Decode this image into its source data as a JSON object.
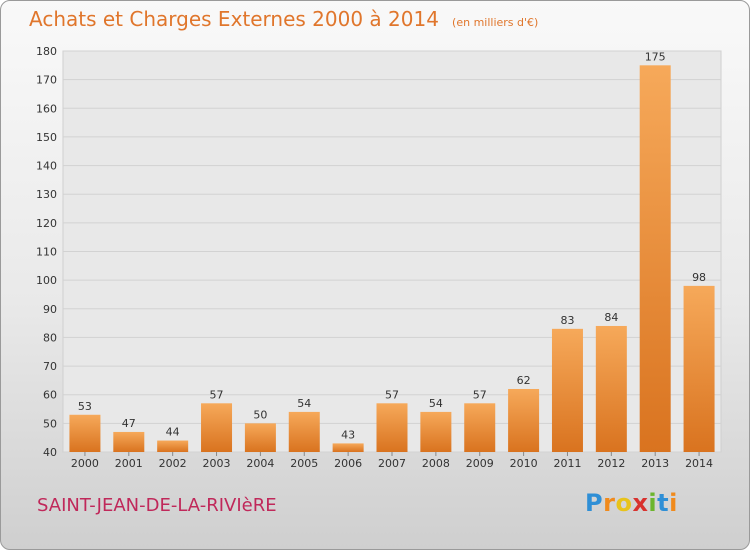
{
  "header": {
    "title": "Achats et Charges Externes 2000 à 2014",
    "unit": "(en milliers d'€)"
  },
  "footer": {
    "municipality": "SAINT-JEAN-DE-LA-RIVIèRE",
    "logo": {
      "text": "Proxiti",
      "letter_colors": [
        "#2f8fd6",
        "#f08a1c",
        "#e8c31a",
        "#d8322e",
        "#6cb52d",
        "#2f8fd6",
        "#f08a1c"
      ]
    }
  },
  "colors": {
    "title": "#e0762c",
    "municipality": "#c0285a",
    "bar_light": "#f6a95a",
    "bar_dark": "#d9731f"
  },
  "chart_data": {
    "type": "bar",
    "title": "Achats et Charges Externes 2000 à 2014",
    "subtitle": "(en milliers d'€)",
    "xlabel": "",
    "ylabel": "",
    "categories": [
      "2000",
      "2001",
      "2002",
      "2003",
      "2004",
      "2005",
      "2006",
      "2007",
      "2008",
      "2009",
      "2010",
      "2011",
      "2012",
      "2013",
      "2014"
    ],
    "values": [
      53,
      47,
      44,
      57,
      50,
      54,
      43,
      57,
      54,
      57,
      62,
      83,
      84,
      175,
      98
    ],
    "ylim": [
      40,
      180
    ],
    "yticks": [
      40,
      50,
      60,
      70,
      80,
      90,
      100,
      110,
      120,
      130,
      140,
      150,
      160,
      170,
      180
    ],
    "grid": true,
    "data_labels": true
  }
}
